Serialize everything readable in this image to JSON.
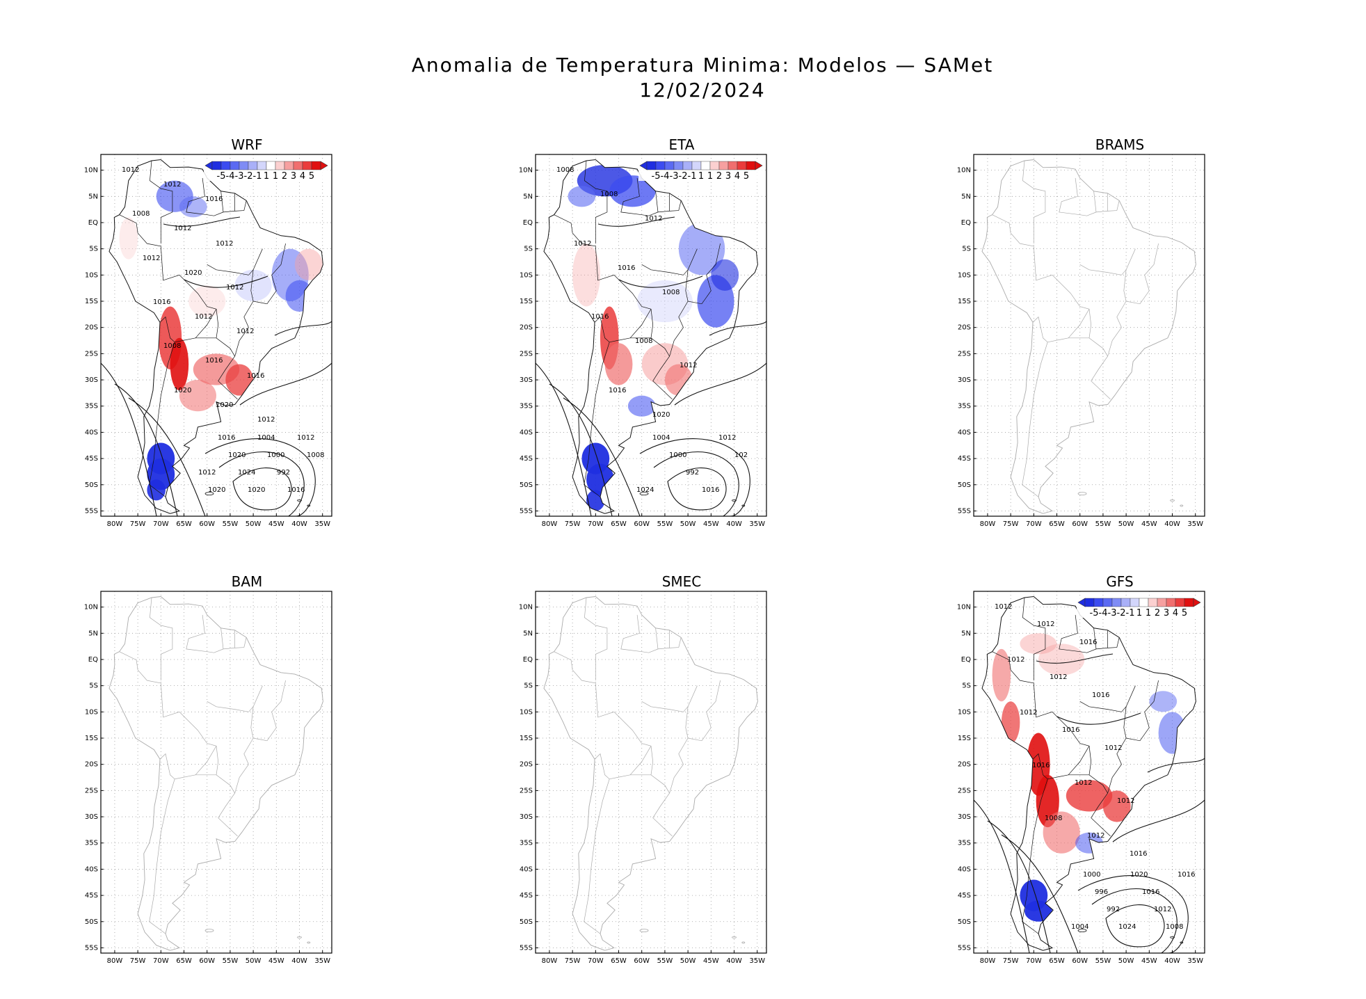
{
  "figure": {
    "title_line1": "Anomalia de Temperatura Minima: Modelos — SAMet",
    "title_line2": "12/02/2024"
  },
  "axes": {
    "lat_labels": [
      "10N",
      "5N",
      "EQ",
      "5S",
      "10S",
      "15S",
      "20S",
      "25S",
      "30S",
      "35S",
      "40S",
      "45S",
      "50S",
      "55S"
    ],
    "lon_labels": [
      "80W",
      "75W",
      "70W",
      "65W",
      "60W",
      "55W",
      "50W",
      "45W",
      "40W",
      "35W"
    ]
  },
  "colorbar": {
    "labels": [
      "-5",
      "-4",
      "-3",
      "-2",
      "-1",
      "1",
      "1",
      "2",
      "3",
      "4",
      "5"
    ],
    "colors": [
      "#1f2ee0",
      "#3c4cf0",
      "#5b6af2",
      "#7f8cf5",
      "#a9b0f8",
      "#d3d6fb",
      "#ffffff",
      "#fbd0d0",
      "#f6a0a0",
      "#f06f6f",
      "#ea3c3c",
      "#e01010"
    ]
  },
  "panels": [
    {
      "name": "WRF",
      "has_data": true,
      "isobar_labels": [
        "1012",
        "1012",
        "1016",
        "1008",
        "1012",
        "1012",
        "1012",
        "1020",
        "1012",
        "1016",
        "1012",
        "1012",
        "1008",
        "1016",
        "1016",
        "1020",
        "1020",
        "1012",
        "1012",
        "1020",
        "1016",
        "1020",
        "1024",
        "1020",
        "1004",
        "1000",
        "992",
        "1016",
        "1012",
        "1008"
      ]
    },
    {
      "name": "ETA",
      "has_data": true,
      "isobar_labels": [
        "1008",
        "1008",
        "1012",
        "1012",
        "1016",
        "1008",
        "1016",
        "1008",
        "1012",
        "1016",
        "1020",
        "1024",
        "1004",
        "1000",
        "992",
        "1016",
        "1012",
        "102"
      ]
    },
    {
      "name": "BRAMS",
      "has_data": false,
      "isobar_labels": []
    },
    {
      "name": "BAM",
      "has_data": false,
      "isobar_labels": []
    },
    {
      "name": "SMEC",
      "has_data": false,
      "isobar_labels": []
    },
    {
      "name": "GFS",
      "has_data": true,
      "isobar_labels": [
        "1012",
        "1012",
        "1016",
        "1012",
        "1012",
        "1016",
        "1012",
        "1016",
        "1012",
        "1016",
        "1012",
        "1012",
        "1008",
        "1012",
        "1016",
        "1004",
        "1000",
        "996",
        "992",
        "1024",
        "1020",
        "1016",
        "1012",
        "1008",
        "1016"
      ]
    }
  ]
}
